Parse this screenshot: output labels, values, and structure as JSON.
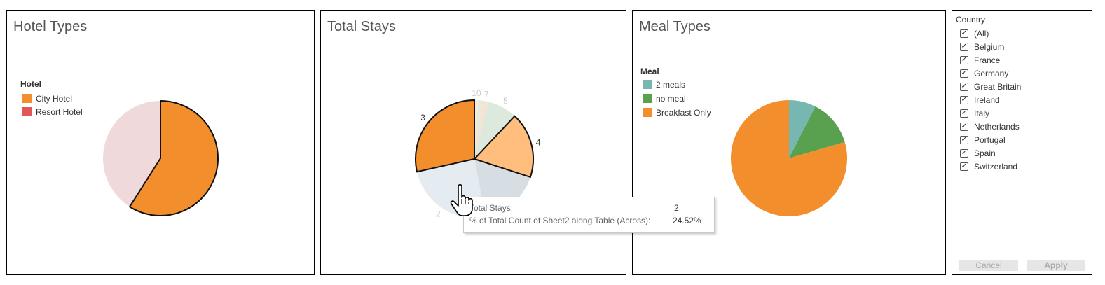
{
  "panels": {
    "hotel": {
      "title": "Hotel Types",
      "legend_title": "Hotel",
      "legend": [
        {
          "label": "City Hotel",
          "color": "#f28e2b"
        },
        {
          "label": "Resort Hotel",
          "color": "#e15759"
        }
      ]
    },
    "stays": {
      "title": "Total Stays"
    },
    "meal": {
      "title": "Meal Types",
      "legend_title": "Meal",
      "legend": [
        {
          "label": "2 meals",
          "color": "#76b7b2"
        },
        {
          "label": "no meal",
          "color": "#59a14f"
        },
        {
          "label": "Breakfast Only",
          "color": "#f28e2b"
        }
      ]
    }
  },
  "chart_data": [
    {
      "type": "pie",
      "title": "Hotel Types",
      "legend_title": "Hotel",
      "slices": [
        {
          "label": "City Hotel",
          "value": 59,
          "color": "#f28e2b",
          "highlighted": true
        },
        {
          "label": "Resort Hotel",
          "value": 41,
          "color": "#f0d9db",
          "highlighted": false
        }
      ]
    },
    {
      "type": "pie",
      "title": "Total Stays",
      "slices": [
        {
          "label": "10",
          "value": 1,
          "color": "#fbe9d8",
          "highlighted": false
        },
        {
          "label": "",
          "value": 1.2,
          "color": "#e2ecdf",
          "highlighted": false
        },
        {
          "label": "7",
          "value": 1.5,
          "color": "#f6e3d2",
          "highlighted": false
        },
        {
          "label": "5",
          "value": 8.3,
          "color": "#dce9dc",
          "highlighted": false
        },
        {
          "label": "4",
          "value": 18,
          "color": "#ffbe7d",
          "highlighted": true
        },
        {
          "label": "",
          "value": 17,
          "color": "#d6dde3",
          "highlighted": false
        },
        {
          "label": "2",
          "value": 24.52,
          "color": "#e4ebf1",
          "highlighted": false
        },
        {
          "label": "3",
          "value": 28.5,
          "color": "#f28e2b",
          "highlighted": true
        }
      ]
    },
    {
      "type": "pie",
      "title": "Meal Types",
      "legend_title": "Meal",
      "slices": [
        {
          "label": "2 meals",
          "value": 7.5,
          "color": "#76b7b2"
        },
        {
          "label": "no meal",
          "value": 13,
          "color": "#59a14f"
        },
        {
          "label": "Breakfast Only",
          "value": 79.5,
          "color": "#f28e2b"
        }
      ]
    }
  ],
  "tooltip": {
    "row1_label": "Total Stays:",
    "row1_value": "2",
    "row2_label": "% of Total Count of Sheet2 along Table (Across):",
    "row2_value": "24.52%"
  },
  "filter": {
    "title": "Country",
    "items": [
      "(All)",
      "Belgium",
      "France",
      "Germany",
      "Great Britain",
      "Ireland",
      "Italy",
      "Netherlands",
      "Portugal",
      "Spain",
      "Switzerland"
    ],
    "checked_mark": "✓",
    "cancel_label": "Cancel",
    "apply_label": "Apply"
  }
}
